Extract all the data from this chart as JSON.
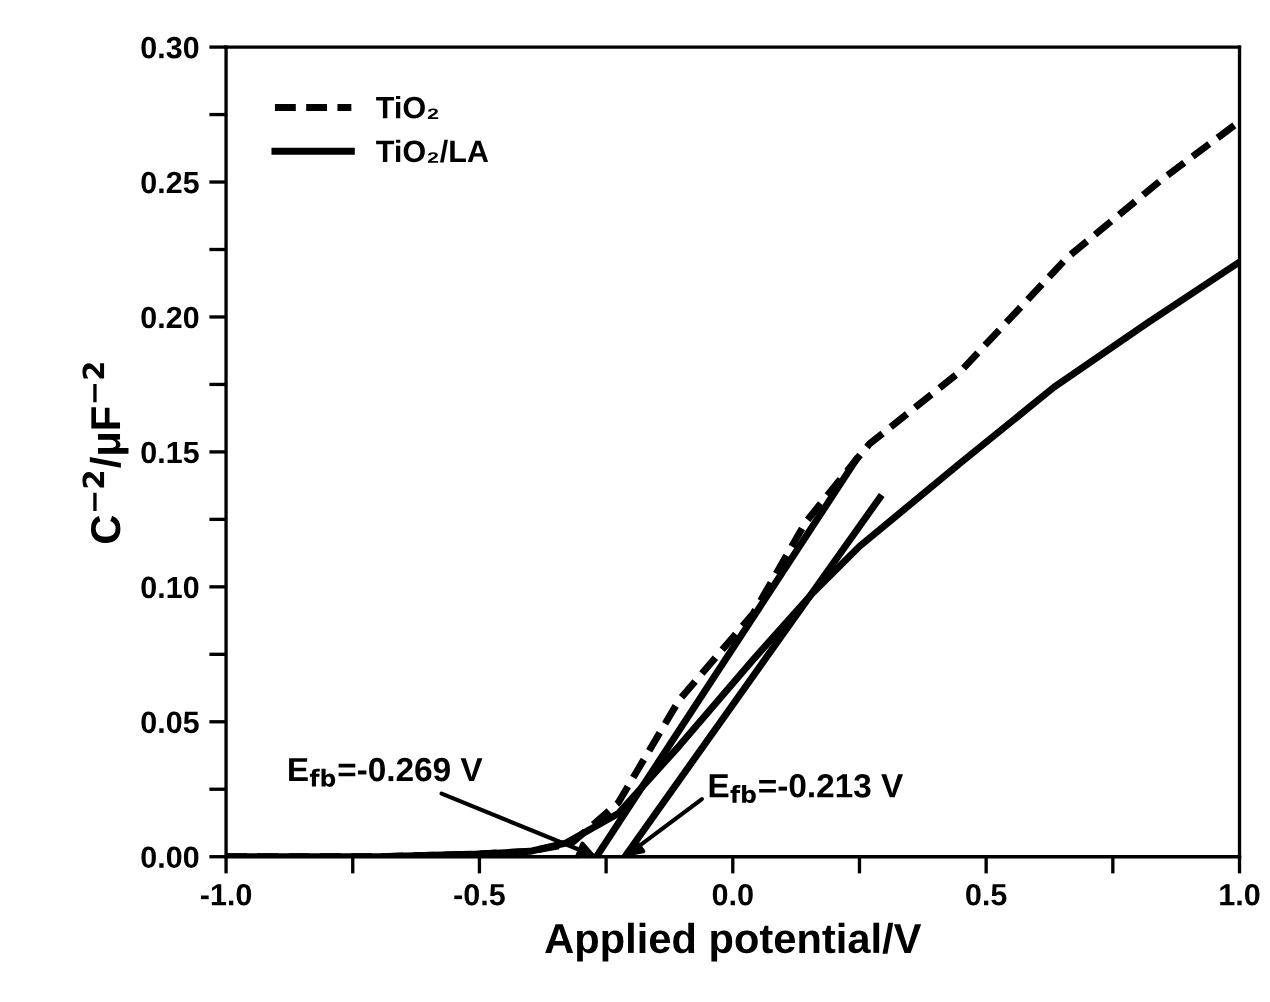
{
  "chart_data": {
    "type": "line",
    "xlabel": "Applied potential/V",
    "ylabel": "C$^{−2}$/μF$^{−2}$",
    "xlim": [
      -1.0,
      1.0
    ],
    "ylim": [
      0.0,
      0.3
    ],
    "xticks": [
      {
        "value": -1.0,
        "label": "-1.0"
      },
      {
        "value": -0.75,
        "label": null
      },
      -0.5,
      {
        "value": -0.25,
        "label": null
      },
      {
        "value": 0.0,
        "label": "0.0"
      },
      {
        "value": 0.25,
        "label": null
      },
      0.5,
      {
        "value": 0.75,
        "label": null
      },
      {
        "value": 1.0,
        "label": "1.0"
      }
    ],
    "yticks": [
      {
        "value": 0.0,
        "label": "0.00"
      },
      {
        "value": 0.025,
        "label": null
      },
      0.05,
      {
        "value": 0.075,
        "label": null
      },
      {
        "value": 0.1,
        "label": "0.10"
      },
      {
        "value": 0.125,
        "label": null
      },
      0.15,
      {
        "value": 0.175,
        "label": null
      },
      {
        "value": 0.2,
        "label": "0.20"
      },
      {
        "value": 0.225,
        "label": null
      },
      0.25,
      {
        "value": 0.275,
        "label": null
      },
      {
        "value": 0.3,
        "label": "0.30"
      }
    ],
    "legend": "top left",
    "grid": false,
    "series": [
      {
        "name": "TiO₂",
        "color": "#000000",
        "line_style": "dashed",
        "x": [
          -1.0,
          -0.7,
          -0.5,
          -0.4,
          -0.318,
          -0.226,
          -0.106,
          0.04,
          0.144,
          0.243,
          0.27,
          0.45,
          0.66,
          0.847,
          0.997
        ],
        "values": [
          0.0,
          0.0,
          0.001,
          0.002,
          0.005,
          0.02,
          0.058,
          0.09,
          0.124,
          0.147,
          0.153,
          0.18,
          0.222,
          0.251,
          0.272
        ]
      },
      {
        "name": "TiO₂/LA",
        "color": "#000000",
        "line_style": "solid",
        "x": [
          -1.0,
          -0.7,
          -0.5,
          -0.4,
          -0.33,
          -0.226,
          -0.106,
          0.04,
          0.159,
          0.25,
          0.45,
          0.634,
          0.82,
          0.997
        ],
        "values": [
          0.0,
          0.0,
          0.001,
          0.002,
          0.005,
          0.016,
          0.041,
          0.073,
          0.098,
          0.115,
          0.146,
          0.174,
          0.198,
          0.22
        ]
      },
      {
        "color": "#000000",
        "line_style": "solid",
        "x": [
          -0.269,
          0.243
        ],
        "values": [
          0.0,
          0.147
        ]
      },
      {
        "color": "#000000",
        "line_style": "solid",
        "x": [
          -0.213,
          0.29
        ],
        "values": [
          0.0,
          0.133
        ]
      }
    ],
    "annotations": [
      {
        "text": "E$_{fb}$=-0.269 V",
        "x": -0.269,
        "y": 0.0
      },
      {
        "text": "E$_{fb}$=-0.213 V",
        "x": -0.213,
        "y": 0.0
      }
    ]
  }
}
